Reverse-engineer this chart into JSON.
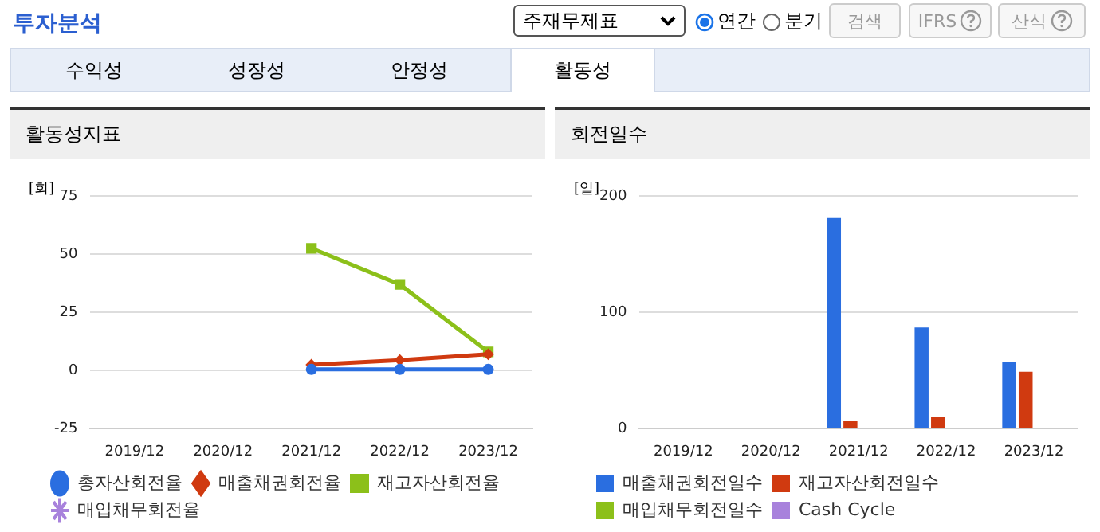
{
  "chart_data": [
    {
      "type": "other",
      "title": "투자분석",
      "annotations": [
        "주재무제표",
        "연간",
        "분기",
        "검색",
        "IFRS",
        "산식",
        "수익성",
        "성장성",
        "안정성",
        "활동성"
      ]
    },
    {
      "type": "line",
      "title": "활동성지표",
      "ylabel": "[회]",
      "categories": [
        "2019/12",
        "2020/12",
        "2021/12",
        "2022/12",
        "2023/12"
      ],
      "series": [
        {
          "name": "총자산회전율",
          "color": "#2a6ee0",
          "marker": "circle",
          "values": [
            null,
            null,
            0.5,
            0.5,
            0.5
          ]
        },
        {
          "name": "매출채권회전율",
          "color": "#d03a10",
          "marker": "diamond",
          "values": [
            null,
            null,
            2.5,
            4.5,
            7
          ]
        },
        {
          "name": "재고자산회전율",
          "color": "#8cc01a",
          "marker": "square",
          "values": [
            null,
            null,
            52.5,
            37,
            8
          ]
        },
        {
          "name": "매입채무회전율",
          "color": "#a882dc",
          "marker": "star",
          "values": [
            null,
            null,
            null,
            null,
            null
          ]
        }
      ],
      "ylim": [
        -25,
        75
      ],
      "yticks": [
        -25,
        0,
        25,
        50,
        75
      ],
      "grid": "y",
      "legend": "bottom"
    },
    {
      "type": "bar",
      "title": "회전일수",
      "ylabel": "[일]",
      "categories": [
        "2019/12",
        "2020/12",
        "2021/12",
        "2022/12",
        "2023/12"
      ],
      "series": [
        {
          "name": "매출채권회전일수",
          "color": "#2a6ee0",
          "values": [
            null,
            null,
            181,
            87,
            57
          ]
        },
        {
          "name": "재고자산회전일수",
          "color": "#d03a10",
          "values": [
            null,
            null,
            7,
            10,
            49
          ]
        },
        {
          "name": "매입채무회전일수",
          "color": "#8cc01a",
          "values": [
            null,
            null,
            null,
            null,
            null
          ]
        },
        {
          "name": "Cash Cycle",
          "color": "#a882dc",
          "values": [
            null,
            null,
            null,
            null,
            null
          ]
        }
      ],
      "ylim": [
        0,
        200
      ],
      "yticks": [
        0,
        100,
        200
      ],
      "grid": "y",
      "legend": "bottom"
    }
  ]
}
